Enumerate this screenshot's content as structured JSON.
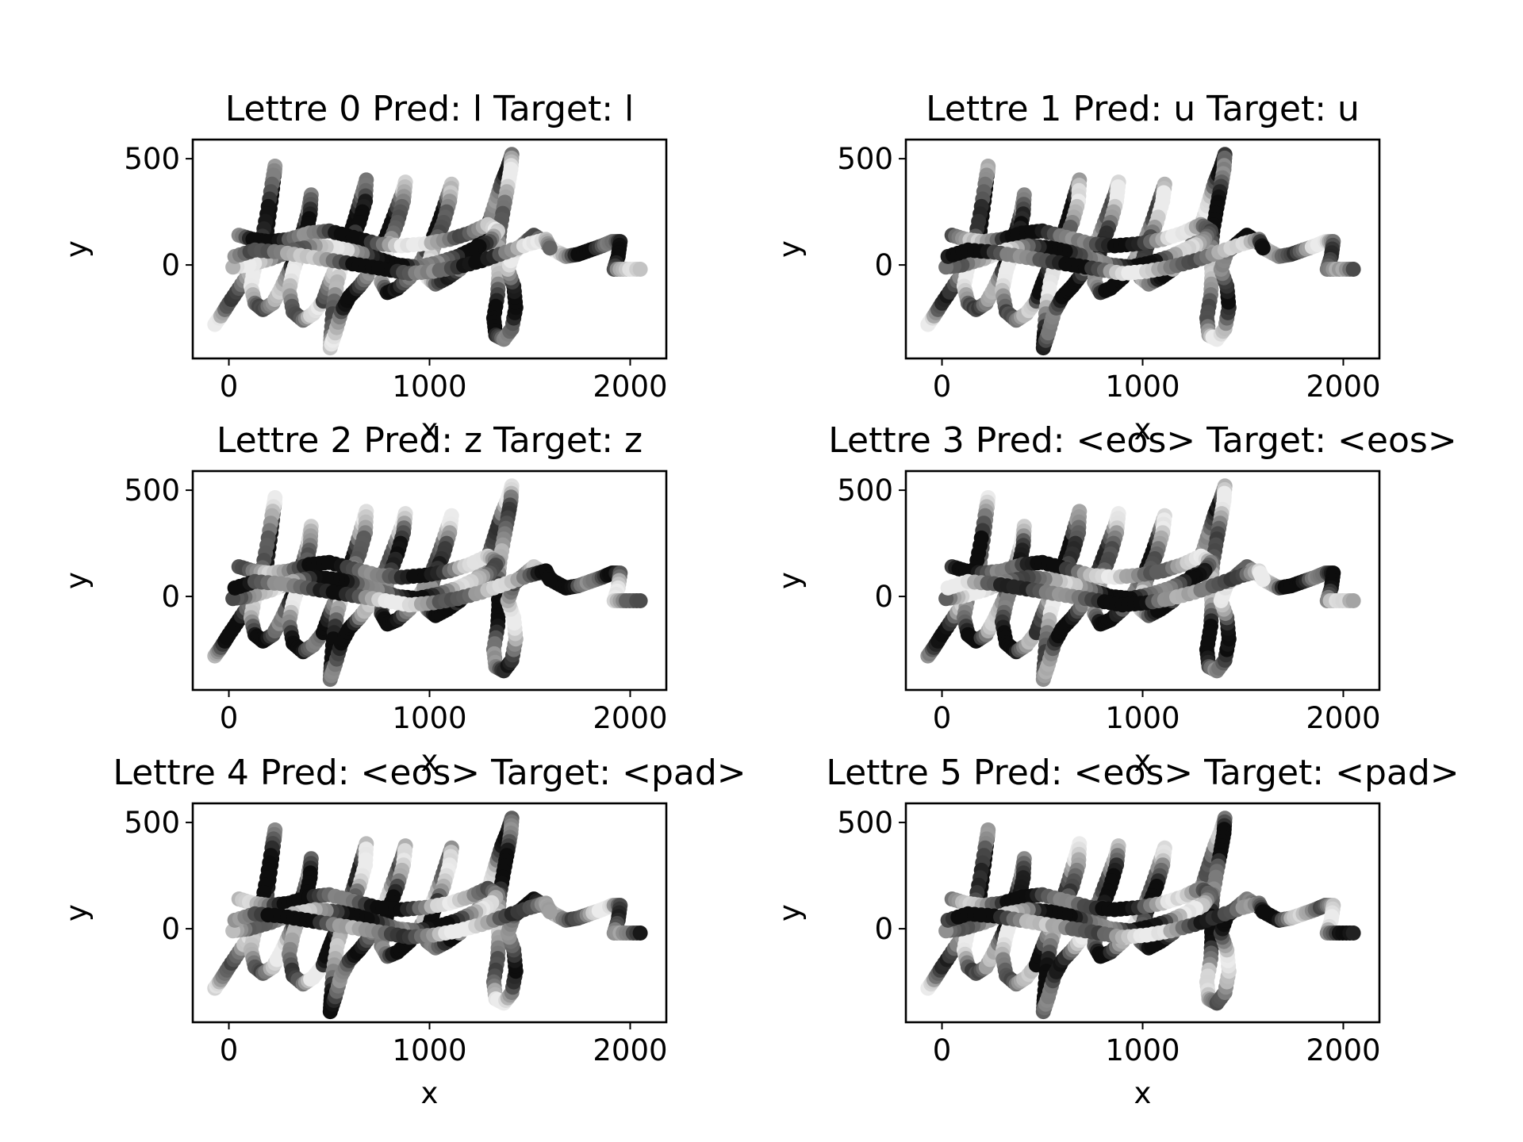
{
  "chart_data": {
    "type": "scatter",
    "shared": {
      "xlabel": "x",
      "ylabel": "y",
      "xlim": [
        -180,
        2180
      ],
      "ylim": [
        -440,
        590
      ],
      "xticks": [
        0,
        1000,
        2000
      ],
      "yticks": [
        0,
        500
      ],
      "grid": false,
      "legend": "none",
      "point_color_scale": "grayscale (value per point)"
    },
    "stroke_template": [
      {
        "points": [
          [
            -70,
            -280
          ],
          [
            -40,
            -240
          ],
          [
            0,
            -180
          ],
          [
            50,
            -110
          ],
          [
            100,
            -40
          ],
          [
            150,
            40
          ],
          [
            190,
            160
          ],
          [
            210,
            300
          ],
          [
            225,
            420
          ],
          [
            230,
            465
          ],
          [
            215,
            380
          ],
          [
            190,
            240
          ],
          [
            160,
            100
          ],
          [
            130,
            0
          ],
          [
            110,
            -100
          ],
          [
            130,
            -180
          ],
          [
            170,
            -210
          ],
          [
            220,
            -180
          ],
          [
            260,
            -110
          ],
          [
            300,
            -30
          ],
          [
            340,
            60
          ],
          [
            370,
            160
          ],
          [
            395,
            250
          ],
          [
            410,
            330
          ],
          [
            405,
            240
          ],
          [
            385,
            150
          ],
          [
            350,
            60
          ],
          [
            320,
            -30
          ],
          [
            300,
            -120
          ],
          [
            320,
            -220
          ],
          [
            370,
            -260
          ],
          [
            420,
            -230
          ],
          [
            470,
            -170
          ]
        ]
      },
      {
        "points": [
          [
            470,
            -170
          ],
          [
            500,
            -90
          ],
          [
            530,
            -20
          ],
          [
            560,
            50
          ],
          [
            600,
            130
          ],
          [
            630,
            220
          ],
          [
            660,
            320
          ],
          [
            685,
            400
          ],
          [
            680,
            300
          ],
          [
            650,
            200
          ],
          [
            610,
            110
          ],
          [
            570,
            20
          ],
          [
            540,
            -80
          ],
          [
            520,
            -200
          ],
          [
            510,
            -320
          ],
          [
            505,
            -390
          ],
          [
            530,
            -320
          ],
          [
            560,
            -220
          ],
          [
            600,
            -150
          ],
          [
            650,
            -100
          ],
          [
            700,
            -40
          ],
          [
            750,
            50
          ],
          [
            790,
            150
          ],
          [
            830,
            250
          ],
          [
            865,
            340
          ],
          [
            880,
            390
          ],
          [
            870,
            300
          ],
          [
            840,
            200
          ],
          [
            800,
            100
          ],
          [
            770,
            0
          ],
          [
            760,
            -80
          ],
          [
            790,
            -130
          ],
          [
            840,
            -110
          ],
          [
            900,
            -60
          ],
          [
            960,
            20
          ],
          [
            1010,
            110
          ],
          [
            1050,
            210
          ],
          [
            1085,
            310
          ],
          [
            1110,
            380
          ],
          [
            1100,
            300
          ],
          [
            1070,
            200
          ],
          [
            1030,
            110
          ],
          [
            1000,
            20
          ],
          [
            990,
            -60
          ],
          [
            1030,
            -90
          ],
          [
            1090,
            -60
          ],
          [
            1150,
            -20
          ]
        ]
      },
      {
        "points": [
          [
            1150,
            -20
          ],
          [
            1210,
            40
          ],
          [
            1260,
            120
          ],
          [
            1300,
            210
          ],
          [
            1330,
            300
          ],
          [
            1360,
            390
          ],
          [
            1390,
            460
          ],
          [
            1410,
            520
          ],
          [
            1405,
            450
          ],
          [
            1390,
            370
          ],
          [
            1370,
            270
          ],
          [
            1350,
            160
          ],
          [
            1340,
            60
          ],
          [
            1345,
            -40
          ],
          [
            1340,
            -140
          ],
          [
            1320,
            -250
          ],
          [
            1330,
            -330
          ],
          [
            1370,
            -350
          ],
          [
            1410,
            -300
          ],
          [
            1430,
            -200
          ],
          [
            1420,
            -100
          ],
          [
            1390,
            -20
          ],
          [
            1420,
            60
          ],
          [
            1470,
            100
          ],
          [
            1520,
            140
          ],
          [
            1570,
            110
          ],
          [
            1620,
            70
          ],
          [
            1680,
            40
          ],
          [
            1740,
            50
          ],
          [
            1800,
            70
          ],
          [
            1860,
            90
          ],
          [
            1910,
            110
          ],
          [
            1950,
            110
          ],
          [
            1940,
            40
          ],
          [
            1920,
            -20
          ],
          [
            1980,
            -20
          ],
          [
            2050,
            -20
          ]
        ]
      },
      {
        "points": [
          [
            50,
            140
          ],
          [
            120,
            120
          ],
          [
            200,
            110
          ],
          [
            300,
            120
          ],
          [
            400,
            150
          ],
          [
            500,
            160
          ],
          [
            620,
            130
          ],
          [
            740,
            100
          ],
          [
            860,
            90
          ],
          [
            980,
            100
          ],
          [
            1100,
            120
          ],
          [
            1200,
            150
          ],
          [
            1290,
            190
          ],
          [
            1340,
            160
          ],
          [
            1300,
            110
          ],
          [
            1230,
            80
          ],
          [
            1140,
            40
          ],
          [
            1040,
            10
          ],
          [
            940,
            -10
          ],
          [
            840,
            0
          ],
          [
            740,
            30
          ],
          [
            640,
            60
          ],
          [
            540,
            80
          ],
          [
            430,
            90
          ],
          [
            320,
            70
          ],
          [
            210,
            30
          ],
          [
            100,
            0
          ],
          [
            20,
            -10
          ]
        ]
      },
      {
        "points": [
          [
            30,
            40
          ],
          [
            130,
            70
          ],
          [
            260,
            60
          ],
          [
            390,
            40
          ],
          [
            520,
            20
          ],
          [
            650,
            0
          ],
          [
            780,
            -20
          ],
          [
            900,
            -40
          ],
          [
            1020,
            -30
          ],
          [
            1140,
            -10
          ],
          [
            1260,
            20
          ],
          [
            1380,
            60
          ],
          [
            1500,
            100
          ],
          [
            1580,
            120
          ],
          [
            1600,
            80
          ]
        ]
      }
    ],
    "panels": [
      {
        "title": "Lettre 0 Pred: l Target: l",
        "shade_seed": 11
      },
      {
        "title": "Lettre 1 Pred: u Target: u",
        "shade_seed": 23
      },
      {
        "title": "Lettre 2 Pred: z Target: z",
        "shade_seed": 37
      },
      {
        "title": "Lettre 3 Pred: <eos> Target: <eos>",
        "shade_seed": 41
      },
      {
        "title": "Lettre 4 Pred: <eos> Target: <pad>",
        "shade_seed": 53
      },
      {
        "title": "Lettre 5 Pred: <eos> Target: <pad>",
        "shade_seed": 67
      }
    ]
  }
}
